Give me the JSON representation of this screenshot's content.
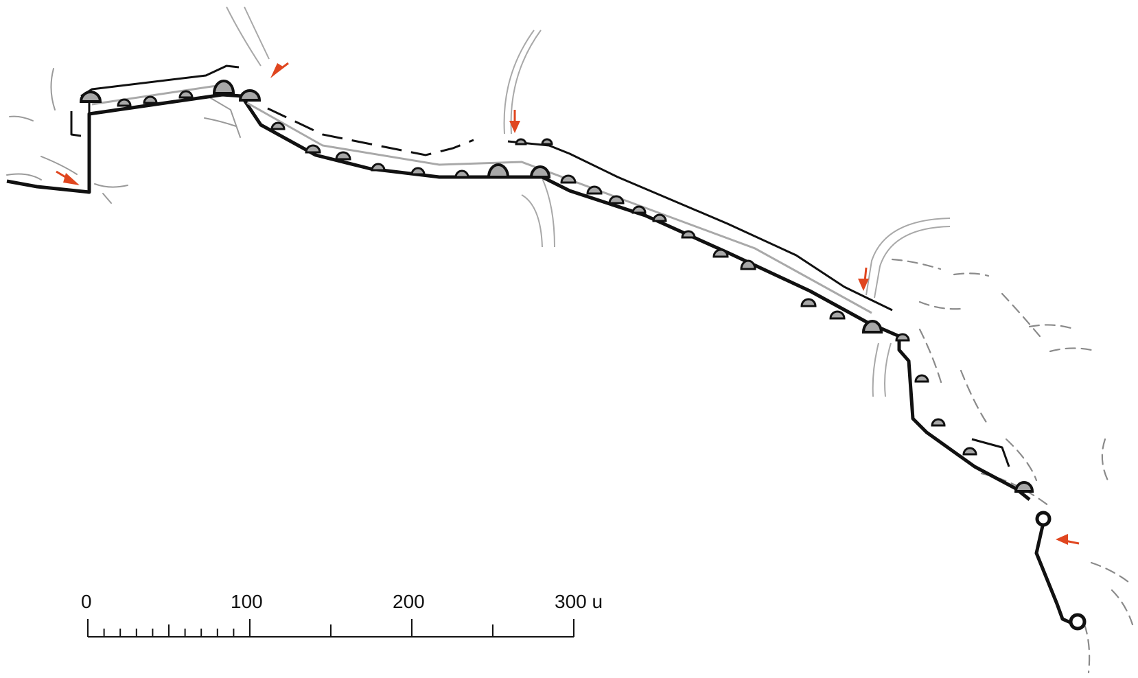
{
  "scale": {
    "labels": [
      "0",
      "100",
      "200",
      "300 u"
    ],
    "values": [
      0,
      100,
      200,
      300
    ]
  },
  "colors": {
    "wall": "#111111",
    "terrain": "#9a9a9a",
    "gate_marker": "#e0461f",
    "tower_fill": "#a8a8a8"
  }
}
